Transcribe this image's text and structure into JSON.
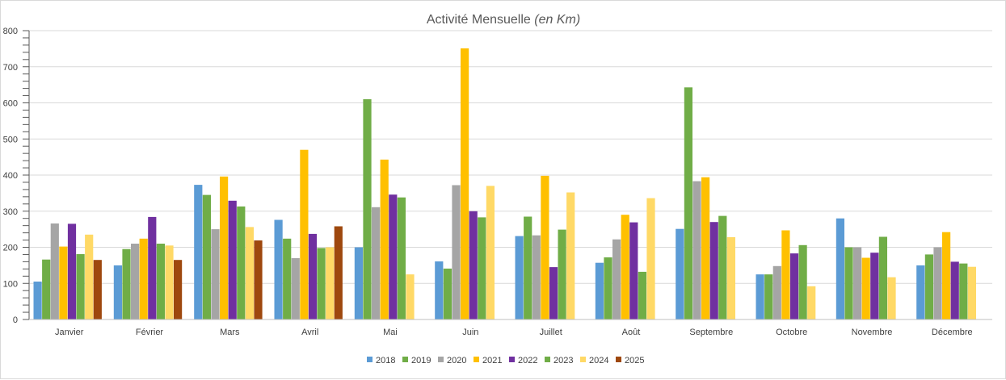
{
  "chart_data": {
    "type": "bar",
    "title": "Activité Mensuelle",
    "title_italic": "(en Km)",
    "xlabel": "",
    "ylabel": "",
    "ylim": [
      0,
      800
    ],
    "yticks": [
      0,
      100,
      200,
      300,
      400,
      500,
      600,
      700,
      800
    ],
    "grid": true,
    "legend_position": "bottom",
    "categories": [
      "Janvier",
      "Février",
      "Mars",
      "Avril",
      "Mai",
      "Juin",
      "Juillet",
      "Août",
      "Septembre",
      "Octobre",
      "Novembre",
      "Décembre"
    ],
    "series": [
      {
        "name": "2018",
        "color": "#5b9bd5",
        "values": [
          105,
          150,
          373,
          276,
          200,
          161,
          231,
          157,
          251,
          125,
          280,
          150
        ]
      },
      {
        "name": "2019",
        "color": "#70ad47",
        "values": [
          166,
          195,
          345,
          224,
          610,
          141,
          285,
          172,
          643,
          125,
          200,
          180
        ]
      },
      {
        "name": "2020",
        "color": "#a5a5a5",
        "values": [
          266,
          210,
          250,
          170,
          311,
          372,
          233,
          222,
          383,
          148,
          200,
          200
        ]
      },
      {
        "name": "2021",
        "color": "#ffc000",
        "values": [
          202,
          224,
          396,
          470,
          443,
          751,
          398,
          290,
          394,
          247,
          171,
          242
        ]
      },
      {
        "name": "2022",
        "color": "#7030a0",
        "values": [
          265,
          284,
          329,
          237,
          346,
          300,
          145,
          269,
          270,
          183,
          185,
          160
        ]
      },
      {
        "name": "2023",
        "color": "#70ad47",
        "values": [
          181,
          210,
          313,
          198,
          338,
          283,
          249,
          132,
          287,
          206,
          229,
          155
        ]
      },
      {
        "name": "2024",
        "color": "#ffd966",
        "values": [
          235,
          205,
          256,
          200,
          125,
          370,
          352,
          336,
          228,
          92,
          117,
          146
        ]
      },
      {
        "name": "2025",
        "color": "#9e480e",
        "values": [
          165,
          165,
          219,
          258,
          null,
          null,
          null,
          null,
          null,
          null,
          null,
          null
        ]
      }
    ]
  }
}
